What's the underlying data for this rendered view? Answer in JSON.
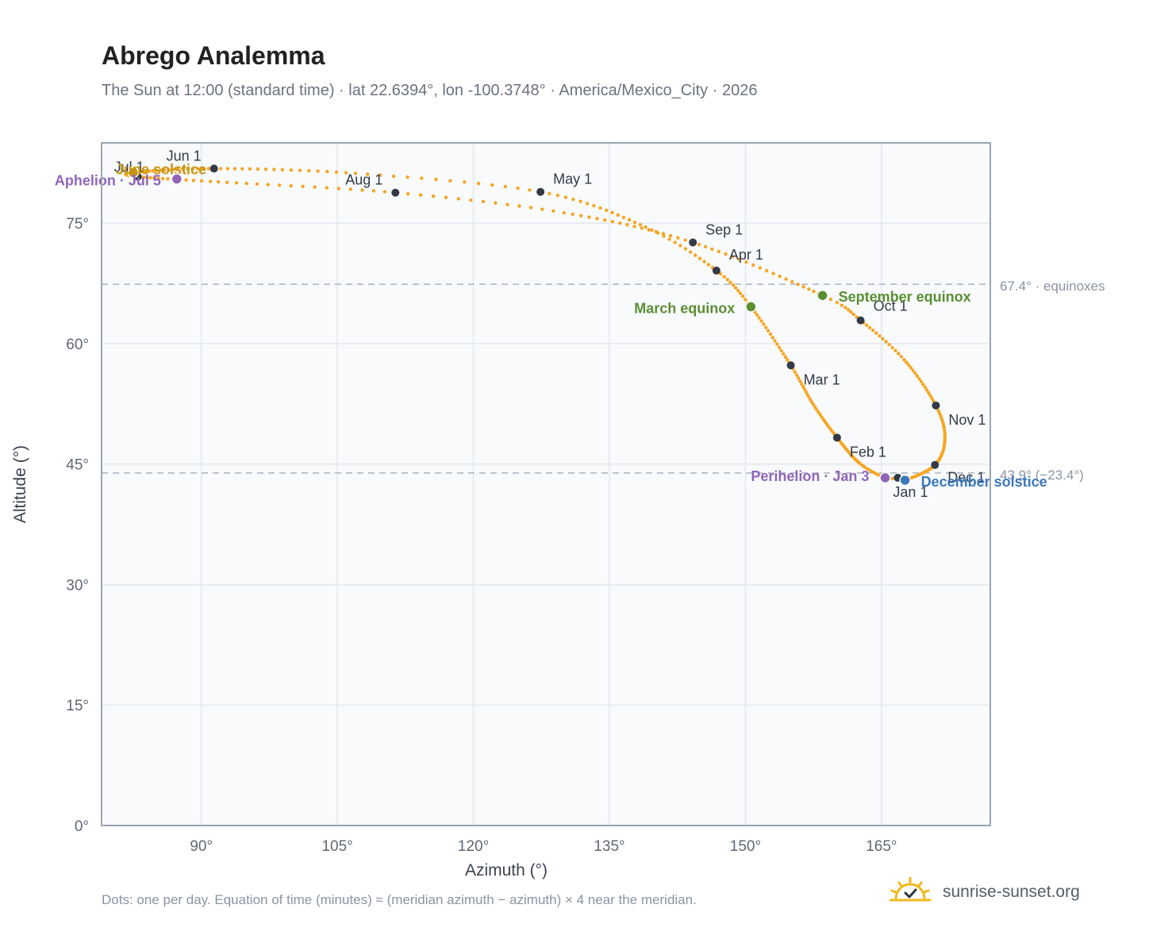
{
  "title": "Abrego Analemma",
  "subtitle": "The Sun at 12:00 (standard time) · lat 22.6394°, lon -100.3748° · America/Mexico_City · 2026",
  "footnote": "Dots: one per day. Equation of time (minutes) ≈ (meridian azimuth − azimuth) × 4 near the meridian.",
  "brand": {
    "text": "sunrise-sunset.org",
    "icon": "sun-check-icon"
  },
  "colors": {
    "curve": "#f5a623",
    "marker": "#333a45",
    "equinox": "#5a8f32",
    "aphelion": "#9266b8",
    "june_solstice": "#c79412",
    "december_solstice": "#3a78bd",
    "reference_line": "#aab4be",
    "plot_bg": "#f8fafc",
    "grid": "#e3e8ee",
    "frame": "#9aa5b1"
  },
  "chart_data": {
    "type": "scatter",
    "xlabel": "Azimuth (°)",
    "ylabel": "Altitude (°)",
    "xlim": [
      79,
      177
    ],
    "ylim": [
      0,
      85
    ],
    "x_ticks": [
      90,
      105,
      120,
      135,
      150,
      165
    ],
    "x_tick_labels": [
      "90°",
      "105°",
      "120°",
      "135°",
      "150°",
      "165°"
    ],
    "y_ticks": [
      0,
      15,
      30,
      45,
      60,
      75
    ],
    "y_tick_labels": [
      "0°",
      "15°",
      "30°",
      "45°",
      "60°",
      "75°"
    ],
    "grid": true,
    "series": [
      {
        "points_per": "day",
        "anchors": [
          {
            "date": "2026-01-01",
            "azimuth": 166.8,
            "altitude": 43.3
          },
          {
            "date": "2026-01-03",
            "azimuth": 165.4,
            "altitude": 43.3
          },
          {
            "date": "2026-01-15",
            "azimuth": 162.6,
            "altitude": 45.1
          },
          {
            "date": "2026-02-01",
            "azimuth": 160.1,
            "altitude": 48.3
          },
          {
            "date": "2026-02-15",
            "azimuth": 157.5,
            "altitude": 52.4
          },
          {
            "date": "2026-03-01",
            "azimuth": 155.0,
            "altitude": 57.3
          },
          {
            "date": "2026-03-20",
            "azimuth": 150.6,
            "altitude": 64.6
          },
          {
            "date": "2026-04-01",
            "azimuth": 146.8,
            "altitude": 69.1
          },
          {
            "date": "2026-04-15",
            "azimuth": 139.0,
            "altitude": 74.5
          },
          {
            "date": "2026-05-01",
            "azimuth": 127.4,
            "altitude": 78.9
          },
          {
            "date": "2026-05-15",
            "azimuth": 107.0,
            "altitude": 81.2
          },
          {
            "date": "2026-06-01",
            "azimuth": 91.4,
            "altitude": 81.8
          },
          {
            "date": "2026-06-21",
            "azimuth": 82.5,
            "altitude": 81.3
          },
          {
            "date": "2026-07-01",
            "azimuth": 83.0,
            "altitude": 80.8
          },
          {
            "date": "2026-07-15",
            "azimuth": 91.0,
            "altitude": 80.2
          },
          {
            "date": "2026-08-01",
            "azimuth": 111.4,
            "altitude": 78.8
          },
          {
            "date": "2026-08-15",
            "azimuth": 130.0,
            "altitude": 76.3
          },
          {
            "date": "2026-09-01",
            "azimuth": 144.2,
            "altitude": 72.6
          },
          {
            "date": "2026-09-22",
            "azimuth": 158.5,
            "altitude": 66.0
          },
          {
            "date": "2026-10-01",
            "azimuth": 162.7,
            "altitude": 62.9
          },
          {
            "date": "2026-10-15",
            "azimuth": 167.5,
            "altitude": 58.0
          },
          {
            "date": "2026-11-01",
            "azimuth": 171.0,
            "altitude": 52.3
          },
          {
            "date": "2026-11-15",
            "azimuth": 172.0,
            "altitude": 48.2
          },
          {
            "date": "2026-12-01",
            "azimuth": 170.9,
            "altitude": 44.9
          },
          {
            "date": "2026-12-21",
            "azimuth": 167.6,
            "altitude": 43.0
          },
          {
            "date": "2027-01-01",
            "azimuth": 166.8,
            "altitude": 43.3
          }
        ]
      }
    ],
    "month_markers": [
      {
        "label": "Jan 1",
        "azimuth": 166.8,
        "altitude": 43.3
      },
      {
        "label": "Feb 1",
        "azimuth": 160.1,
        "altitude": 48.3
      },
      {
        "label": "Mar 1",
        "azimuth": 155.0,
        "altitude": 57.3
      },
      {
        "label": "Apr 1",
        "azimuth": 146.8,
        "altitude": 69.1
      },
      {
        "label": "May 1",
        "azimuth": 127.4,
        "altitude": 78.9
      },
      {
        "label": "Jun 1",
        "azimuth": 91.4,
        "altitude": 81.8
      },
      {
        "label": "Jul 1",
        "azimuth": 83.0,
        "altitude": 80.8
      },
      {
        "label": "Aug 1",
        "azimuth": 111.4,
        "altitude": 78.8
      },
      {
        "label": "Sep 1",
        "azimuth": 144.2,
        "altitude": 72.6
      },
      {
        "label": "Oct 1",
        "azimuth": 162.7,
        "altitude": 62.9
      },
      {
        "label": "Nov 1",
        "azimuth": 171.0,
        "altitude": 52.3
      },
      {
        "label": "Dec 1",
        "azimuth": 170.9,
        "altitude": 44.9
      }
    ],
    "events": [
      {
        "label": "March equinox",
        "azimuth": 150.6,
        "altitude": 64.6,
        "color": "#5a8f32"
      },
      {
        "label": "September equinox",
        "azimuth": 158.5,
        "altitude": 66.0,
        "color": "#5a8f32"
      },
      {
        "label": "June solstice",
        "azimuth": 82.5,
        "altitude": 81.3,
        "color": "#c79412"
      },
      {
        "label": "December solstice",
        "azimuth": 167.6,
        "altitude": 43.0,
        "color": "#3a78bd"
      },
      {
        "label": "Aphelion · Jul 5",
        "azimuth": 87.3,
        "altitude": 80.5,
        "color": "#9266b8"
      },
      {
        "label": "Perihelion · Jan 3",
        "azimuth": 165.4,
        "altitude": 43.3,
        "color": "#9266b8"
      }
    ],
    "reference_lines": [
      {
        "altitude": 67.4,
        "label": "67.4° · equinoxes"
      },
      {
        "altitude": 43.9,
        "label": "43.9° (−23.4°)"
      }
    ]
  }
}
